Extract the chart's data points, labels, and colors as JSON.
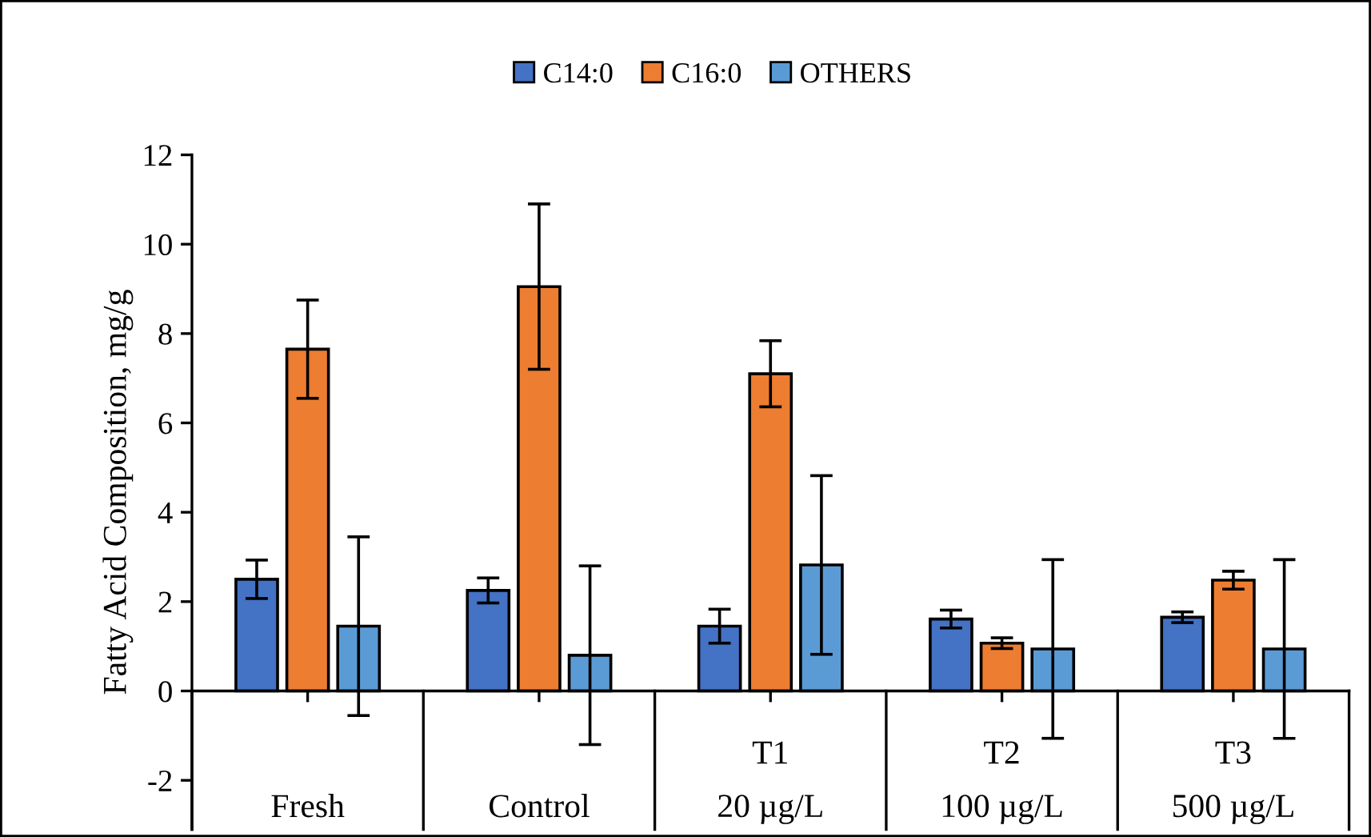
{
  "chart_data": {
    "type": "bar",
    "ylabel": "Fatty Acid Composition, mg/g",
    "categories": [
      "Fresh",
      "Control",
      "T1\n20 µg/L",
      "T2\n100 µg/L",
      "T3\n500 µg/L"
    ],
    "series": [
      {
        "name": "C14:0",
        "color": "#4472c4",
        "values": [
          2.5,
          2.25,
          1.45,
          1.61,
          1.65
        ],
        "errors": [
          0.43,
          0.28,
          0.38,
          0.2,
          0.12
        ]
      },
      {
        "name": "C16:0",
        "color": "#ed7d31",
        "values": [
          7.65,
          9.05,
          7.1,
          1.07,
          2.48
        ],
        "errors": [
          1.1,
          1.85,
          0.74,
          0.12,
          0.2
        ]
      },
      {
        "name": "OTHERS",
        "color": "#5b9bd5",
        "values": [
          1.45,
          0.8,
          2.82,
          0.94,
          0.94
        ],
        "errors": [
          2.0,
          2.0,
          2.0,
          2.0,
          2.0
        ]
      }
    ],
    "ylim": [
      -3.1,
      12
    ],
    "yticks": [
      -2,
      0,
      2,
      4,
      6,
      8,
      10,
      12
    ],
    "legend": "top"
  }
}
